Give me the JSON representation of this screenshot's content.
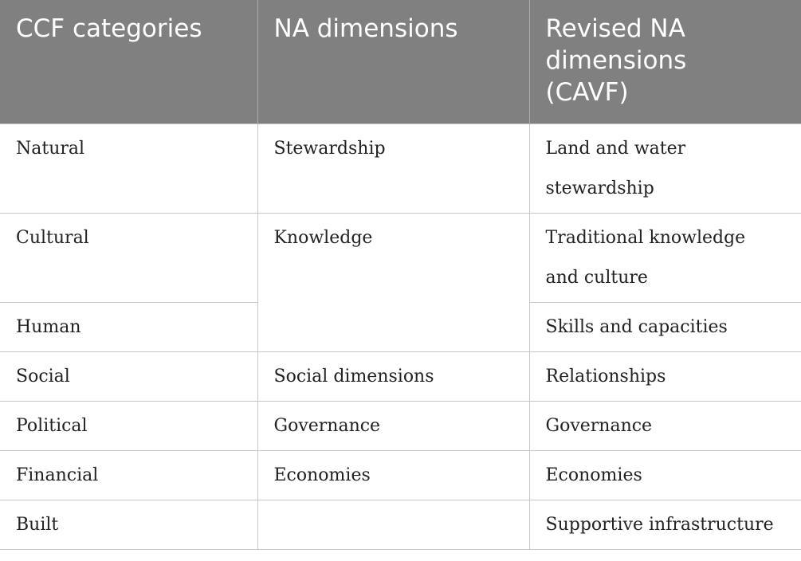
{
  "table": {
    "header": [
      "CCF categories",
      "NA dimensions",
      "Revised NA dimensions (CAVF)"
    ],
    "rows": [
      [
        "Natural",
        "Stewardship",
        "Land and water stewardship"
      ],
      [
        "Cultural",
        "Knowledge",
        "Traditional knowledge and culture"
      ],
      [
        "Human",
        null,
        "Skills and capacities"
      ],
      [
        "Social",
        "Social dimensions",
        "Relationships"
      ],
      [
        "Political",
        "Governance",
        "Governance"
      ],
      [
        "Financial",
        "Economies",
        "Economies"
      ],
      [
        "Built",
        null,
        "Supportive infrastructure"
      ]
    ]
  }
}
